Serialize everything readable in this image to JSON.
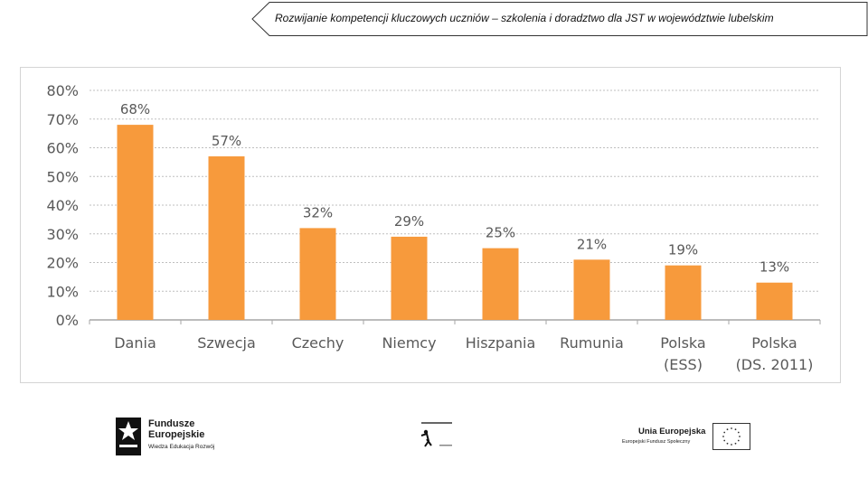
{
  "header": {
    "title": "Rozwijanie kompetencji kluczowych uczniów – szkolenia i doradztwo dla JST w województwie lubelskim"
  },
  "chart_data": {
    "type": "bar",
    "categories": [
      [
        "Dania"
      ],
      [
        "Szwecja"
      ],
      [
        "Czechy"
      ],
      [
        "Niemcy"
      ],
      [
        "Hiszpania"
      ],
      [
        "Rumunia"
      ],
      [
        "Polska",
        "(ESS)"
      ],
      [
        "Polska",
        "(DS. 2011)"
      ]
    ],
    "values": [
      68,
      57,
      32,
      29,
      25,
      21,
      19,
      13
    ],
    "value_labels": [
      "68%",
      "57%",
      "32%",
      "29%",
      "25%",
      "21%",
      "19%",
      "13%"
    ],
    "ylim": [
      0,
      80
    ],
    "y_ticks": [
      0,
      10,
      20,
      30,
      40,
      50,
      60,
      70,
      80
    ],
    "y_tick_labels": [
      "0%",
      "10%",
      "20%",
      "30%",
      "40%",
      "50%",
      "60%",
      "70%",
      "80%"
    ],
    "grid": true,
    "bar_color": "#f79a3c",
    "title": "",
    "xlabel": "",
    "ylabel": ""
  },
  "footer": {
    "fe_logo": {
      "line1": "Fundusze",
      "line2": "Europejskie",
      "sub": "Wiedza Edukacja Rozwój"
    },
    "ue_logo": {
      "name": "Unia Europejska",
      "sub": "Europejski Fundusz Społeczny"
    }
  },
  "colors": {
    "bar": "#f79a3c",
    "grid": "#bfbfbf",
    "axis_text": "#595959"
  }
}
